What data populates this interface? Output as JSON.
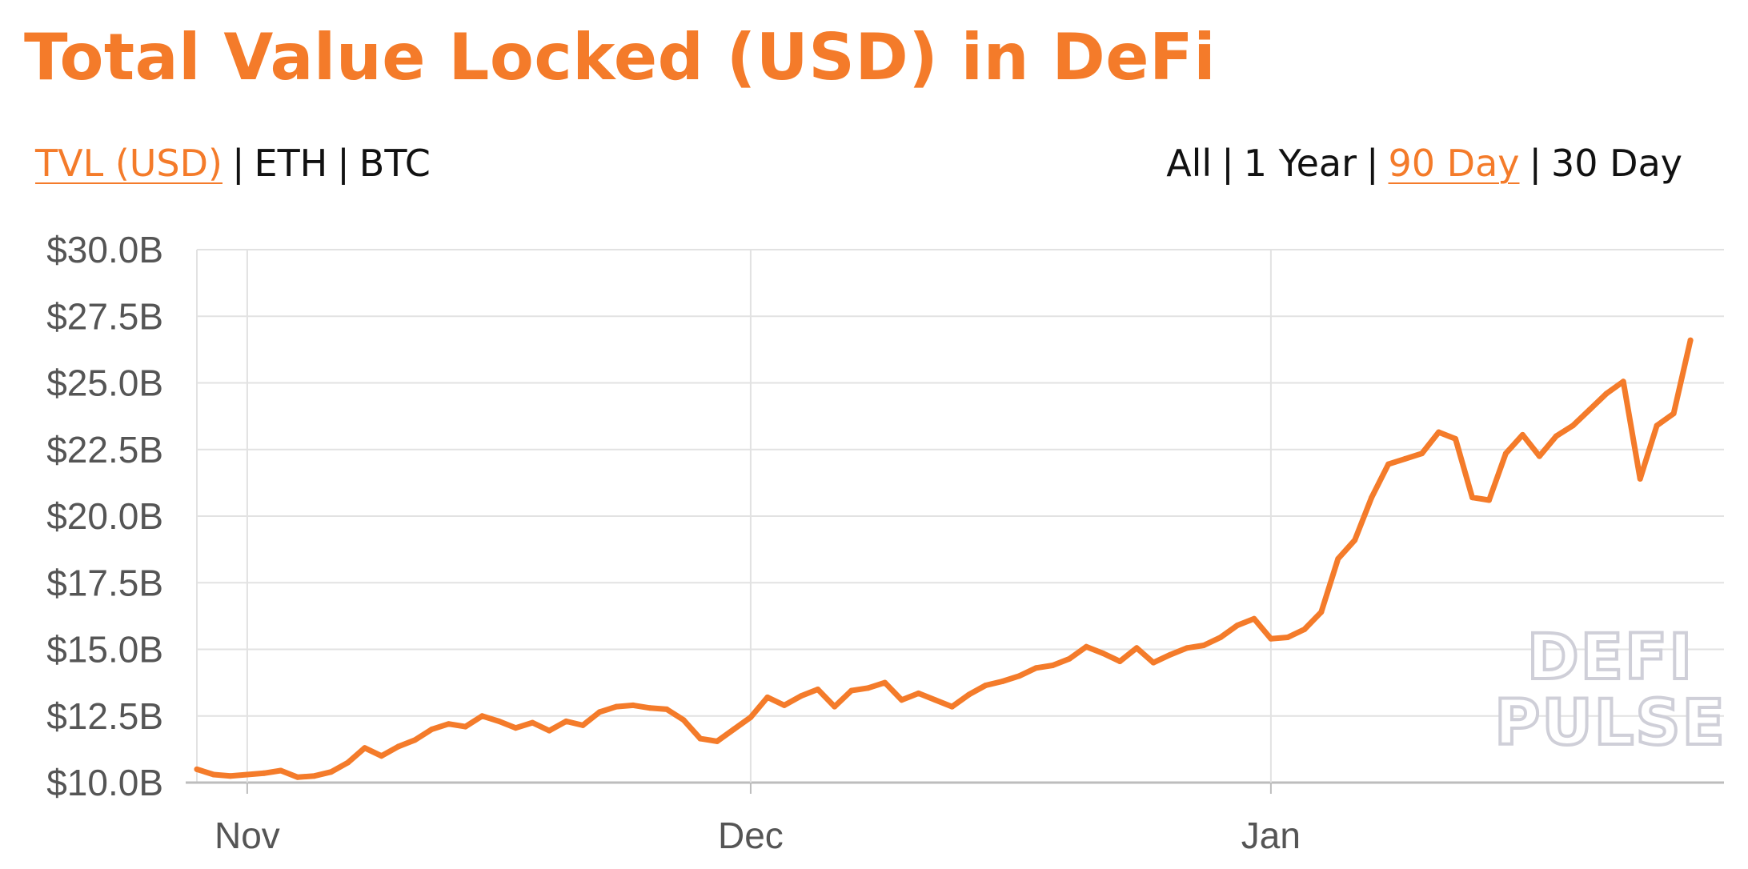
{
  "title": "Total Value Locked (USD) in DeFi",
  "colors": {
    "accent": "#f47b2a",
    "text": "#111111",
    "axis_text": "#555555",
    "grid": "#e2e2e2",
    "watermark": "#cfcfd8"
  },
  "metric_tabs": [
    {
      "label": "TVL (USD)",
      "active": true
    },
    {
      "label": "ETH",
      "active": false
    },
    {
      "label": "BTC",
      "active": false
    }
  ],
  "range_tabs": [
    {
      "label": "All",
      "active": false
    },
    {
      "label": "1 Year",
      "active": false
    },
    {
      "label": "90 Day",
      "active": true
    },
    {
      "label": "30 Day",
      "active": false
    }
  ],
  "separator": "|",
  "watermark": {
    "line1": "DEFI",
    "line2": "PULSE"
  },
  "chart_data": {
    "type": "line",
    "title": "Total Value Locked (USD) in DeFi",
    "xlabel": "",
    "ylabel": "",
    "grid": true,
    "ylim": [
      10.0,
      30.0
    ],
    "y_unit": "billion USD",
    "yticks": [
      {
        "value": 10.0,
        "label": "$10.0B"
      },
      {
        "value": 12.5,
        "label": "$12.5B"
      },
      {
        "value": 15.0,
        "label": "$15.0B"
      },
      {
        "value": 17.5,
        "label": "$17.5B"
      },
      {
        "value": 20.0,
        "label": "$20.0B"
      },
      {
        "value": 22.5,
        "label": "$22.5B"
      },
      {
        "value": 25.0,
        "label": "$25.0B"
      },
      {
        "value": 27.5,
        "label": "$27.5B"
      },
      {
        "value": 30.0,
        "label": "$30.0B"
      }
    ],
    "xrange": [
      "2020-10-29",
      "2021-01-28"
    ],
    "xticks": [
      {
        "date": "2020-11-01",
        "label": "Nov"
      },
      {
        "date": "2020-12-01",
        "label": "Dec"
      },
      {
        "date": "2021-01-01",
        "label": "Jan"
      }
    ],
    "series": [
      {
        "points": [
          [
            "2020-10-29",
            10.5
          ],
          [
            "2020-10-30",
            10.3
          ],
          [
            "2020-10-31",
            10.25
          ],
          [
            "2020-11-01",
            10.3
          ],
          [
            "2020-11-02",
            10.35
          ],
          [
            "2020-11-03",
            10.45
          ],
          [
            "2020-11-04",
            10.2
          ],
          [
            "2020-11-05",
            10.25
          ],
          [
            "2020-11-06",
            10.4
          ],
          [
            "2020-11-07",
            10.75
          ],
          [
            "2020-11-08",
            11.3
          ],
          [
            "2020-11-09",
            11.0
          ],
          [
            "2020-11-10",
            11.35
          ],
          [
            "2020-11-11",
            11.6
          ],
          [
            "2020-11-12",
            12.0
          ],
          [
            "2020-11-13",
            12.2
          ],
          [
            "2020-11-14",
            12.1
          ],
          [
            "2020-11-15",
            12.5
          ],
          [
            "2020-11-16",
            12.3
          ],
          [
            "2020-11-17",
            12.05
          ],
          [
            "2020-11-18",
            12.25
          ],
          [
            "2020-11-19",
            11.95
          ],
          [
            "2020-11-20",
            12.3
          ],
          [
            "2020-11-21",
            12.15
          ],
          [
            "2020-11-22",
            12.65
          ],
          [
            "2020-11-23",
            12.85
          ],
          [
            "2020-11-24",
            12.9
          ],
          [
            "2020-11-25",
            12.8
          ],
          [
            "2020-11-26",
            12.75
          ],
          [
            "2020-11-27",
            12.35
          ],
          [
            "2020-11-28",
            11.65
          ],
          [
            "2020-11-29",
            11.55
          ],
          [
            "2020-11-30",
            12.0
          ],
          [
            "2020-12-01",
            12.45
          ],
          [
            "2020-12-02",
            13.2
          ],
          [
            "2020-12-03",
            12.9
          ],
          [
            "2020-12-04",
            13.25
          ],
          [
            "2020-12-05",
            13.5
          ],
          [
            "2020-12-06",
            12.85
          ],
          [
            "2020-12-07",
            13.45
          ],
          [
            "2020-12-08",
            13.55
          ],
          [
            "2020-12-09",
            13.75
          ],
          [
            "2020-12-10",
            13.1
          ],
          [
            "2020-12-11",
            13.35
          ],
          [
            "2020-12-12",
            13.1
          ],
          [
            "2020-12-13",
            12.85
          ],
          [
            "2020-12-14",
            13.3
          ],
          [
            "2020-12-15",
            13.65
          ],
          [
            "2020-12-16",
            13.8
          ],
          [
            "2020-12-17",
            14.0
          ],
          [
            "2020-12-18",
            14.3
          ],
          [
            "2020-12-19",
            14.4
          ],
          [
            "2020-12-20",
            14.65
          ],
          [
            "2020-12-21",
            15.1
          ],
          [
            "2020-12-22",
            14.85
          ],
          [
            "2020-12-23",
            14.55
          ],
          [
            "2020-12-24",
            15.05
          ],
          [
            "2020-12-25",
            14.5
          ],
          [
            "2020-12-26",
            14.8
          ],
          [
            "2020-12-27",
            15.05
          ],
          [
            "2020-12-28",
            15.15
          ],
          [
            "2020-12-29",
            15.45
          ],
          [
            "2020-12-30",
            15.9
          ],
          [
            "2020-12-31",
            16.15
          ],
          [
            "2021-01-01",
            15.4
          ],
          [
            "2021-01-02",
            15.45
          ],
          [
            "2021-01-03",
            15.75
          ],
          [
            "2021-01-04",
            16.4
          ],
          [
            "2021-01-05",
            18.4
          ],
          [
            "2021-01-06",
            19.1
          ],
          [
            "2021-01-07",
            20.7
          ],
          [
            "2021-01-08",
            21.95
          ],
          [
            "2021-01-09",
            22.15
          ],
          [
            "2021-01-10",
            22.35
          ],
          [
            "2021-01-11",
            23.15
          ],
          [
            "2021-01-12",
            22.9
          ],
          [
            "2021-01-13",
            20.7
          ],
          [
            "2021-01-14",
            20.6
          ],
          [
            "2021-01-15",
            22.35
          ],
          [
            "2021-01-16",
            23.05
          ],
          [
            "2021-01-17",
            22.25
          ],
          [
            "2021-01-18",
            23.0
          ],
          [
            "2021-01-19",
            23.4
          ],
          [
            "2021-01-20",
            24.0
          ],
          [
            "2021-01-21",
            24.6
          ],
          [
            "2021-01-22",
            25.05
          ],
          [
            "2021-01-23",
            21.4
          ],
          [
            "2021-01-24",
            23.4
          ],
          [
            "2021-01-25",
            23.85
          ],
          [
            "2021-01-26",
            26.6
          ]
        ]
      }
    ]
  }
}
